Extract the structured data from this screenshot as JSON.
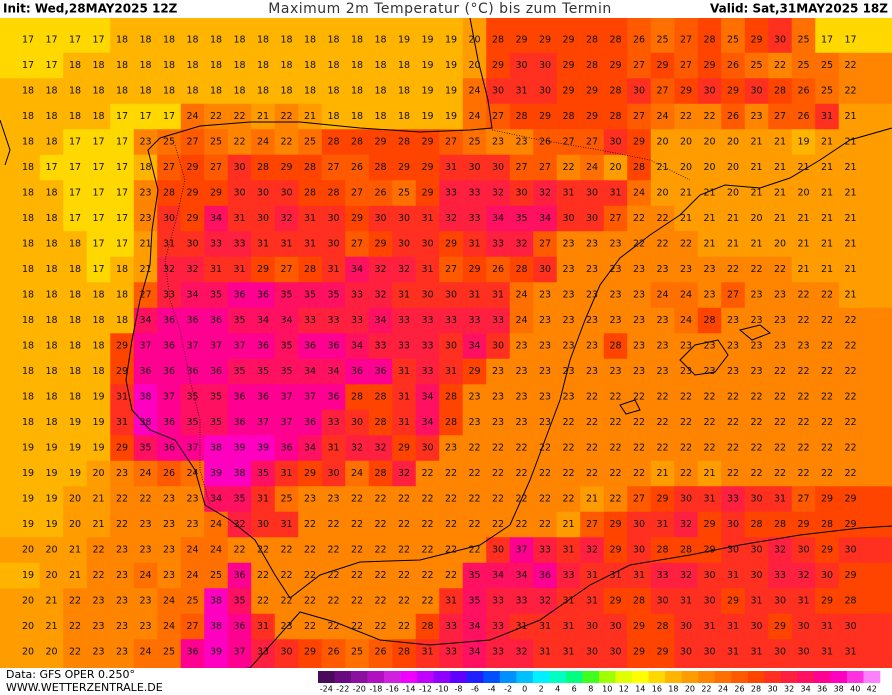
{
  "header": {
    "init": "Init: Wed,28MAY2025 12Z",
    "title": "Maximum 2m Temperatur (°C) bis zum Termin",
    "valid": "Valid: Sat,31MAY2025 18Z"
  },
  "footer": {
    "data": "Data: GFS OPER 0.250°",
    "site": "WWW.WETTERZENTRALE.DE"
  },
  "legend": {
    "ticks": [
      -24,
      -22,
      -20,
      -18,
      -16,
      -14,
      -12,
      -10,
      -8,
      -6,
      -4,
      -2,
      0,
      2,
      4,
      6,
      8,
      10,
      12,
      14,
      16,
      18,
      20,
      22,
      24,
      26,
      28,
      30,
      32,
      34,
      36,
      38,
      40,
      42
    ],
    "colors": [
      "#4a0a5a",
      "#6a0a80",
      "#8a10a0",
      "#b010c0",
      "#d020e0",
      "#f000ff",
      "#c000ff",
      "#9000ff",
      "#6000ff",
      "#2020ff",
      "#0050ff",
      "#0090ff",
      "#00c0ff",
      "#00f0ff",
      "#00ffc0",
      "#00ff80",
      "#40ff20",
      "#a0ff00",
      "#e0ff00",
      "#ffff00",
      "#ffd800",
      "#ffb400",
      "#ff9c00",
      "#ff8400",
      "#ff7000",
      "#ff5a00",
      "#ff4400",
      "#ff3020",
      "#ff2040",
      "#ff1060",
      "#ff0090",
      "#ff00c0",
      "#ff30e0",
      "#ff80ff"
    ]
  },
  "map": {
    "grid": [
      [
        17,
        17,
        17,
        17,
        18,
        18,
        18,
        18,
        18,
        18,
        18,
        18,
        18,
        18,
        18,
        18,
        19,
        19,
        19,
        20,
        28,
        29,
        29,
        29,
        28,
        28,
        26,
        25,
        27,
        28,
        25,
        29,
        30,
        25,
        17,
        17
      ],
      [
        17,
        17,
        18,
        18,
        18,
        18,
        18,
        18,
        18,
        18,
        18,
        18,
        18,
        18,
        18,
        18,
        18,
        19,
        19,
        20,
        29,
        30,
        30,
        29,
        28,
        29,
        27,
        29,
        27,
        29,
        26,
        25,
        22,
        25,
        25,
        22
      ],
      [
        18,
        18,
        18,
        18,
        18,
        18,
        18,
        18,
        18,
        18,
        18,
        18,
        18,
        18,
        18,
        18,
        18,
        19,
        19,
        24,
        30,
        31,
        30,
        29,
        29,
        28,
        30,
        27,
        29,
        30,
        29,
        30,
        28,
        26,
        25,
        22
      ],
      [
        18,
        18,
        18,
        18,
        17,
        17,
        17,
        24,
        22,
        22,
        21,
        22,
        21,
        18,
        18,
        18,
        18,
        19,
        19,
        24,
        27,
        28,
        29,
        28,
        29,
        28,
        27,
        24,
        22,
        22,
        26,
        23,
        27,
        26,
        31,
        21
      ],
      [
        18,
        18,
        17,
        17,
        17,
        23,
        25,
        27,
        25,
        22,
        24,
        22,
        25,
        28,
        28,
        29,
        28,
        29,
        27,
        25,
        23,
        23,
        26,
        27,
        27,
        30,
        29,
        20,
        20,
        20,
        20,
        21,
        21,
        19,
        21,
        21
      ],
      [
        18,
        17,
        17,
        17,
        17,
        18,
        27,
        29,
        27,
        30,
        28,
        29,
        28,
        27,
        26,
        28,
        29,
        29,
        31,
        30,
        30,
        27,
        27,
        22,
        24,
        20,
        28,
        21,
        20,
        20,
        20,
        21,
        21,
        21,
        21,
        21
      ],
      [
        18,
        18,
        17,
        17,
        17,
        23,
        28,
        29,
        29,
        30,
        30,
        30,
        28,
        28,
        27,
        26,
        25,
        29,
        33,
        33,
        32,
        30,
        32,
        31,
        30,
        31,
        24,
        20,
        21,
        21,
        20,
        21,
        21,
        20,
        21,
        21
      ],
      [
        18,
        18,
        17,
        17,
        17,
        23,
        30,
        29,
        34,
        31,
        30,
        32,
        31,
        30,
        29,
        30,
        30,
        31,
        32,
        33,
        34,
        35,
        34,
        30,
        30,
        27,
        22,
        22,
        21,
        21,
        21,
        20,
        21,
        21,
        21,
        21
      ],
      [
        18,
        18,
        18,
        17,
        17,
        21,
        31,
        30,
        33,
        33,
        31,
        31,
        31,
        30,
        27,
        29,
        30,
        30,
        29,
        31,
        33,
        32,
        27,
        23,
        23,
        23,
        22,
        22,
        22,
        21,
        21,
        21,
        20,
        21,
        21,
        21
      ],
      [
        18,
        18,
        18,
        17,
        18,
        21,
        32,
        32,
        31,
        31,
        29,
        27,
        28,
        31,
        34,
        32,
        32,
        31,
        27,
        29,
        26,
        28,
        30,
        23,
        23,
        23,
        23,
        23,
        23,
        23,
        22,
        22,
        22,
        21,
        21,
        21
      ],
      [
        18,
        18,
        18,
        18,
        18,
        27,
        33,
        34,
        35,
        36,
        36,
        35,
        35,
        35,
        33,
        32,
        31,
        30,
        30,
        31,
        31,
        24,
        23,
        23,
        23,
        23,
        23,
        24,
        24,
        23,
        27,
        23,
        23,
        22,
        22,
        21
      ],
      [
        18,
        18,
        18,
        18,
        18,
        34,
        36,
        36,
        36,
        35,
        34,
        34,
        33,
        33,
        33,
        34,
        33,
        33,
        33,
        33,
        33,
        24,
        23,
        23,
        23,
        23,
        23,
        23,
        24,
        28,
        23,
        23,
        23,
        22,
        22,
        22
      ],
      [
        18,
        18,
        18,
        18,
        29,
        37,
        36,
        37,
        37,
        37,
        36,
        35,
        36,
        36,
        34,
        33,
        33,
        33,
        30,
        34,
        30,
        23,
        23,
        23,
        23,
        28,
        23,
        23,
        23,
        23,
        23,
        23,
        23,
        23,
        22,
        22
      ],
      [
        18,
        18,
        18,
        18,
        29,
        36,
        36,
        36,
        36,
        35,
        35,
        35,
        34,
        34,
        36,
        36,
        31,
        33,
        31,
        29,
        23,
        23,
        23,
        23,
        23,
        23,
        23,
        23,
        23,
        23,
        23,
        23,
        22,
        22,
        22,
        22
      ],
      [
        18,
        18,
        18,
        19,
        31,
        38,
        37,
        35,
        35,
        36,
        36,
        37,
        37,
        36,
        28,
        28,
        31,
        34,
        28,
        23,
        23,
        23,
        23,
        23,
        22,
        22,
        22,
        22,
        22,
        22,
        22,
        22,
        22,
        22,
        22,
        22
      ],
      [
        18,
        18,
        19,
        19,
        31,
        38,
        36,
        35,
        35,
        36,
        37,
        37,
        36,
        33,
        30,
        28,
        31,
        34,
        28,
        23,
        23,
        23,
        23,
        22,
        22,
        22,
        22,
        22,
        22,
        22,
        22,
        22,
        22,
        22,
        22,
        22
      ],
      [
        19,
        19,
        19,
        19,
        29,
        35,
        36,
        37,
        38,
        39,
        39,
        36,
        34,
        31,
        32,
        32,
        29,
        30,
        23,
        22,
        22,
        22,
        22,
        22,
        22,
        22,
        22,
        22,
        22,
        22,
        22,
        22,
        22,
        22,
        22,
        22
      ],
      [
        19,
        19,
        19,
        20,
        23,
        24,
        26,
        24,
        39,
        38,
        35,
        31,
        29,
        30,
        24,
        28,
        32,
        22,
        22,
        22,
        22,
        22,
        22,
        22,
        22,
        22,
        22,
        21,
        22,
        21,
        22,
        22,
        22,
        22,
        22,
        22
      ],
      [
        19,
        19,
        20,
        21,
        22,
        22,
        23,
        23,
        34,
        35,
        31,
        25,
        23,
        23,
        22,
        22,
        22,
        22,
        22,
        22,
        22,
        22,
        22,
        22,
        21,
        22,
        27,
        29,
        30,
        31,
        33,
        30,
        31,
        27,
        29,
        29
      ],
      [
        19,
        19,
        20,
        21,
        22,
        23,
        23,
        23,
        24,
        32,
        30,
        31,
        22,
        22,
        22,
        22,
        22,
        22,
        22,
        22,
        22,
        22,
        22,
        21,
        27,
        29,
        30,
        31,
        32,
        29,
        30,
        28,
        28,
        29,
        28,
        29
      ],
      [
        20,
        20,
        21,
        22,
        23,
        23,
        23,
        24,
        24,
        22,
        22,
        22,
        22,
        22,
        22,
        22,
        22,
        22,
        22,
        22,
        30,
        37,
        33,
        31,
        32,
        29,
        30,
        28,
        28,
        29,
        30,
        30,
        32,
        30,
        29,
        30
      ],
      [
        19,
        20,
        21,
        22,
        23,
        24,
        23,
        24,
        25,
        36,
        22,
        22,
        22,
        22,
        22,
        22,
        22,
        22,
        22,
        35,
        34,
        34,
        36,
        33,
        31,
        31,
        31,
        33,
        32,
        30,
        31,
        30,
        33,
        32,
        30,
        29
      ],
      [
        20,
        21,
        22,
        23,
        23,
        23,
        24,
        25,
        38,
        35,
        22,
        22,
        22,
        22,
        22,
        22,
        22,
        22,
        31,
        35,
        33,
        33,
        32,
        31,
        31,
        29,
        28,
        30,
        31,
        30,
        29,
        31,
        30,
        31,
        29,
        28
      ],
      [
        20,
        21,
        22,
        23,
        23,
        23,
        24,
        27,
        38,
        36,
        31,
        23,
        22,
        22,
        22,
        22,
        22,
        28,
        33,
        34,
        33,
        31,
        31,
        31,
        30,
        30,
        29,
        28,
        30,
        31,
        31,
        30,
        29,
        30,
        31,
        30
      ],
      [
        20,
        20,
        22,
        23,
        23,
        24,
        25,
        36,
        39,
        37,
        33,
        30,
        29,
        26,
        25,
        26,
        28,
        31,
        33,
        34,
        33,
        32,
        31,
        31,
        30,
        30,
        29,
        29,
        30,
        30,
        31,
        31,
        30,
        30,
        31,
        31
      ]
    ]
  }
}
